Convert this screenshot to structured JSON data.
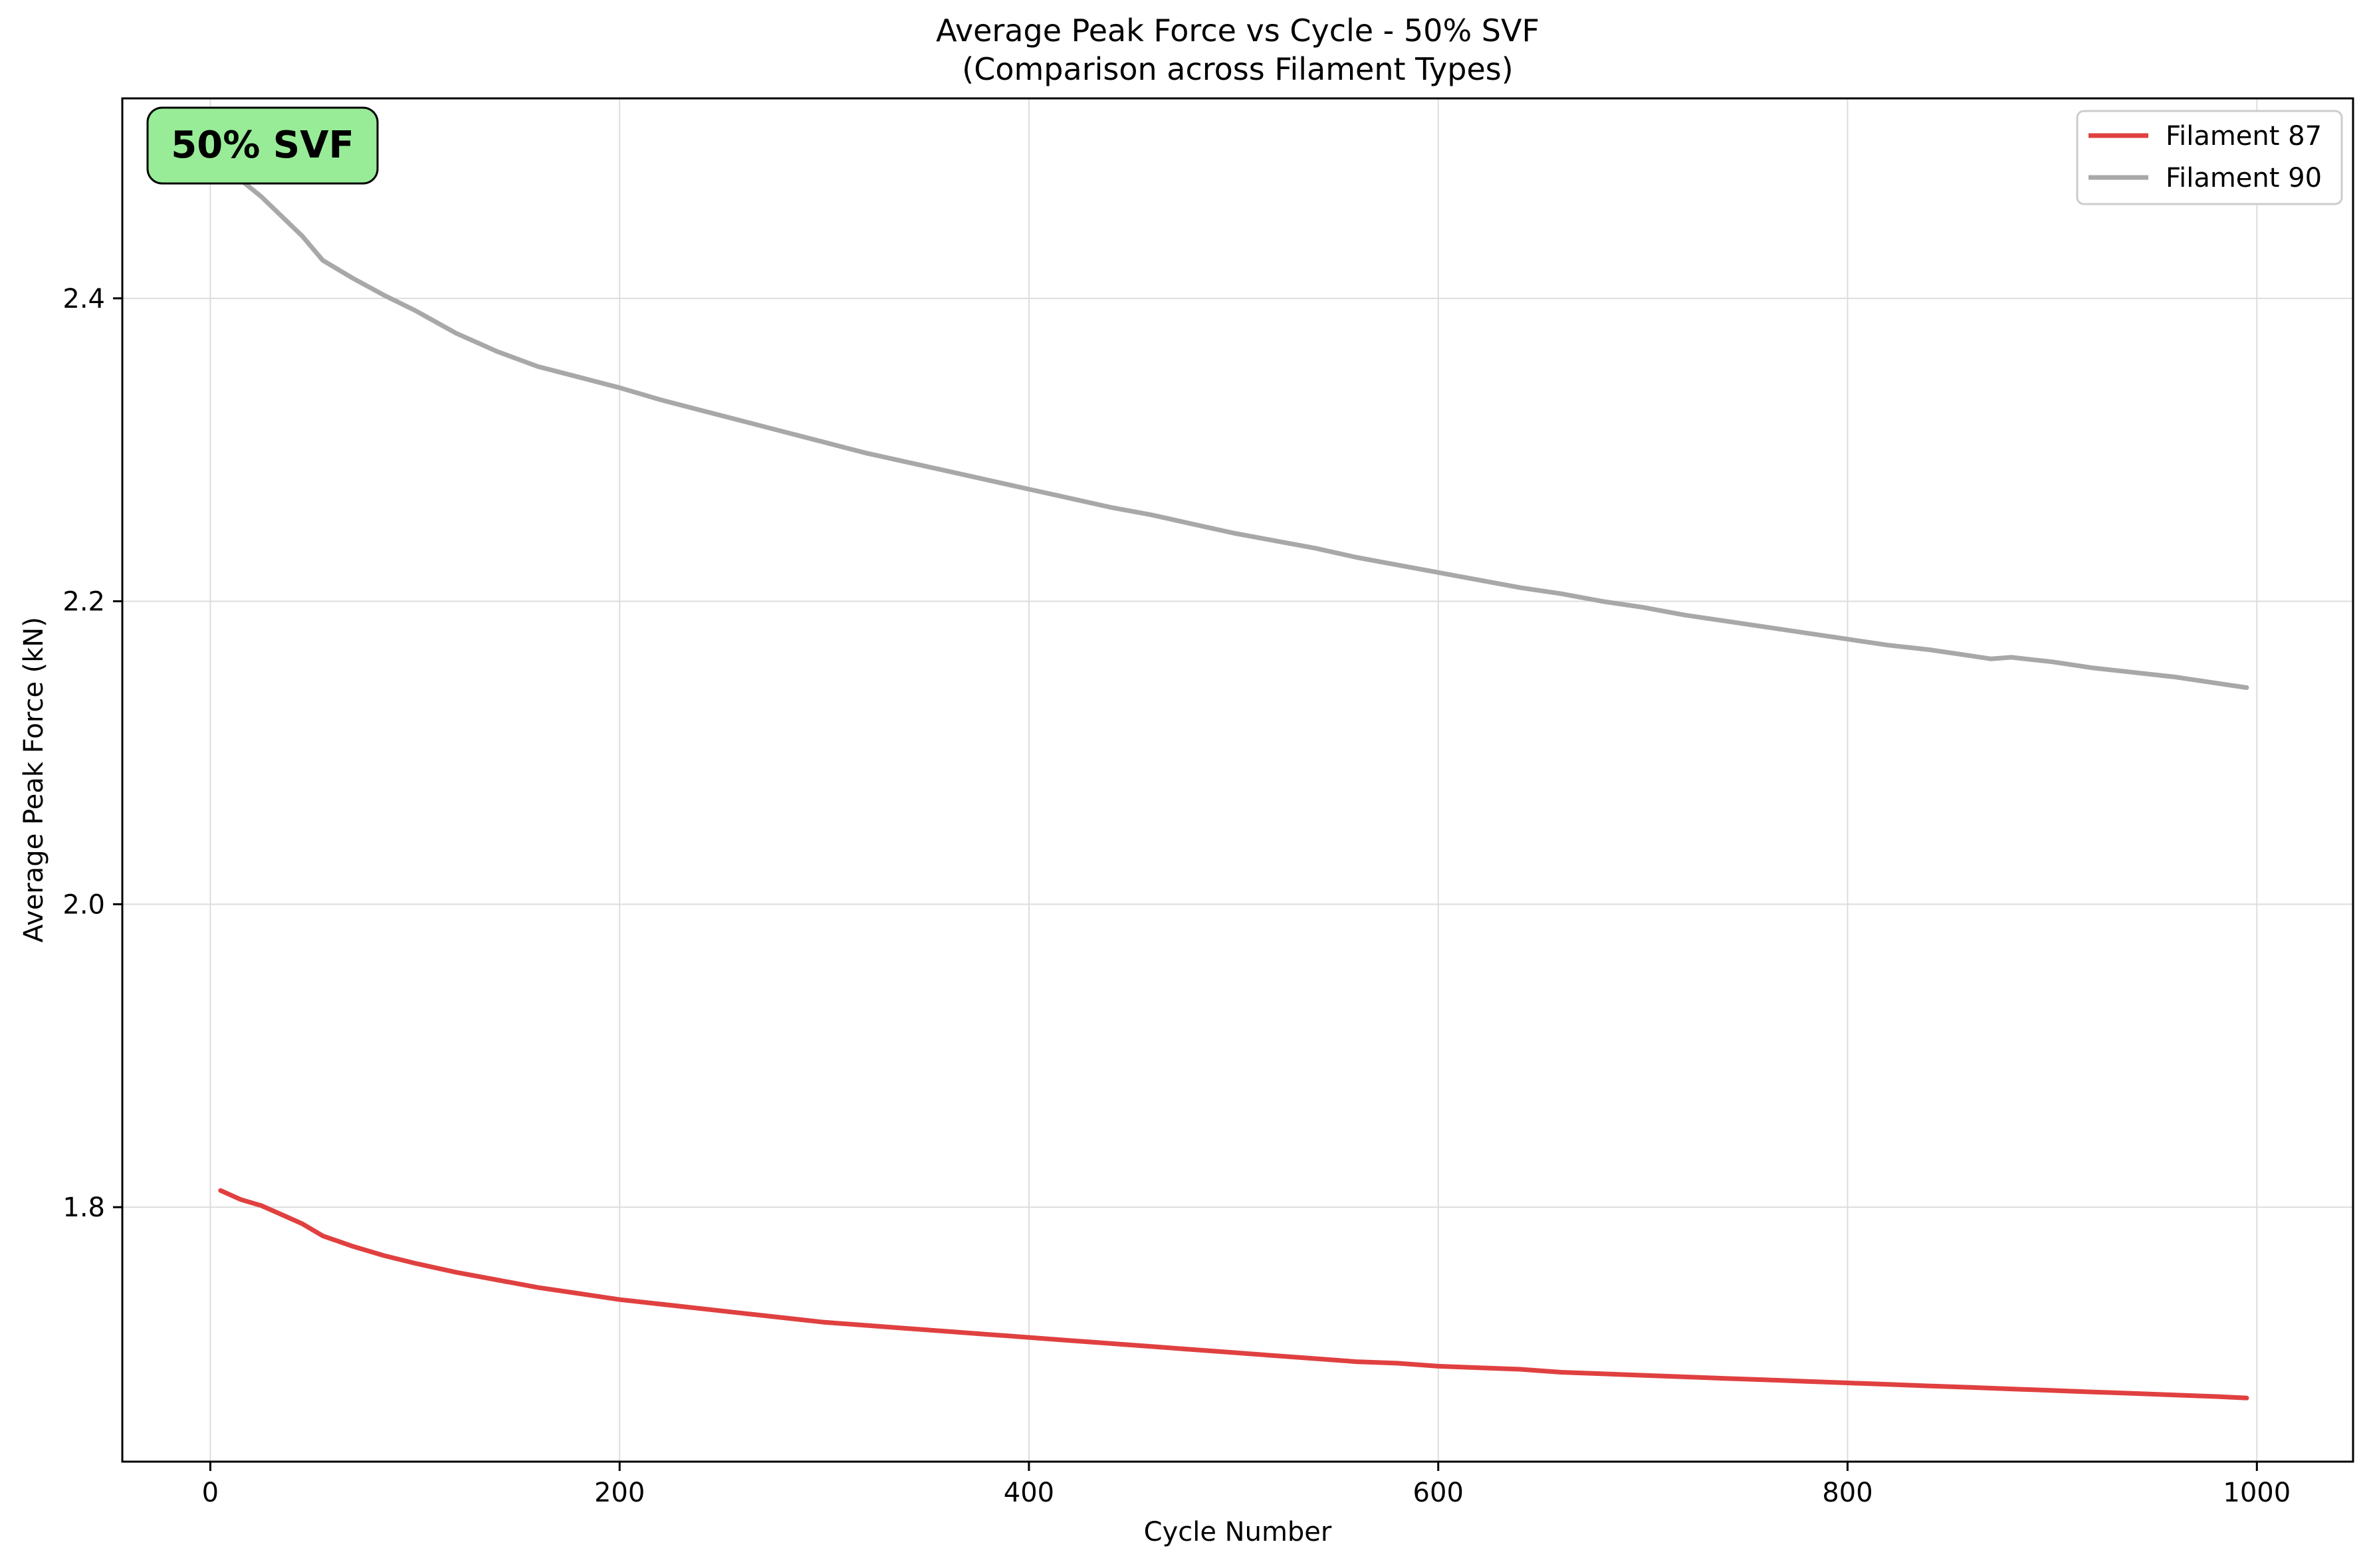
{
  "chart_data": {
    "type": "line",
    "title_line1": "Average Peak Force vs Cycle - 50% SVF",
    "title_line2": "(Comparison across Filament Types)",
    "xlabel": "Cycle Number",
    "ylabel": "Average Peak Force (kN)",
    "annotation": "50% SVF",
    "xlim": [
      -43,
      1047
    ],
    "ylim": [
      1.632,
      2.532
    ],
    "xticks": [
      0,
      200,
      400,
      600,
      800,
      1000
    ],
    "yticks": [
      1.8,
      2.0,
      2.2,
      2.4
    ],
    "xtick_labels": [
      "0",
      "200",
      "400",
      "600",
      "800",
      "1000"
    ],
    "ytick_labels": [
      "1.8",
      "2.0",
      "2.2",
      "2.4"
    ],
    "grid": true,
    "legend_position": "top-right",
    "series": [
      {
        "name": "Filament 87",
        "color": "#e04040",
        "x": [
          5,
          15,
          25,
          35,
          45,
          55,
          70,
          85,
          100,
          120,
          140,
          160,
          180,
          200,
          220,
          240,
          260,
          280,
          300,
          320,
          340,
          360,
          380,
          400,
          420,
          440,
          460,
          480,
          500,
          520,
          540,
          560,
          580,
          600,
          620,
          640,
          660,
          680,
          700,
          720,
          740,
          760,
          780,
          800,
          820,
          840,
          860,
          880,
          900,
          920,
          940,
          960,
          980,
          995
        ],
        "values": [
          1.811,
          1.805,
          1.801,
          1.795,
          1.789,
          1.781,
          1.774,
          1.768,
          1.763,
          1.757,
          1.752,
          1.747,
          1.743,
          1.739,
          1.736,
          1.733,
          1.73,
          1.727,
          1.724,
          1.722,
          1.72,
          1.718,
          1.716,
          1.714,
          1.712,
          1.71,
          1.708,
          1.706,
          1.704,
          1.702,
          1.7,
          1.698,
          1.697,
          1.695,
          1.694,
          1.693,
          1.691,
          1.69,
          1.689,
          1.688,
          1.687,
          1.686,
          1.685,
          1.684,
          1.683,
          1.682,
          1.681,
          1.68,
          1.679,
          1.678,
          1.677,
          1.676,
          1.675,
          1.674
        ]
      },
      {
        "name": "Filament 90",
        "color": "#a8a8a8",
        "x": [
          5,
          15,
          25,
          35,
          45,
          55,
          70,
          85,
          100,
          120,
          140,
          160,
          180,
          200,
          220,
          240,
          260,
          280,
          300,
          320,
          340,
          360,
          380,
          400,
          420,
          440,
          460,
          480,
          500,
          520,
          540,
          560,
          580,
          600,
          620,
          640,
          660,
          680,
          700,
          720,
          740,
          760,
          780,
          800,
          820,
          840,
          860,
          870,
          880,
          900,
          920,
          940,
          960,
          980,
          995
        ],
        "values": [
          2.49,
          2.478,
          2.467,
          2.454,
          2.441,
          2.425,
          2.413,
          2.402,
          2.392,
          2.377,
          2.365,
          2.355,
          2.348,
          2.341,
          2.333,
          2.326,
          2.319,
          2.312,
          2.305,
          2.298,
          2.292,
          2.286,
          2.28,
          2.274,
          2.268,
          2.262,
          2.257,
          2.251,
          2.245,
          2.24,
          2.235,
          2.229,
          2.224,
          2.219,
          2.214,
          2.209,
          2.205,
          2.2,
          2.196,
          2.191,
          2.187,
          2.183,
          2.179,
          2.175,
          2.171,
          2.168,
          2.164,
          2.162,
          2.163,
          2.16,
          2.156,
          2.153,
          2.15,
          2.146,
          2.143
        ]
      }
    ]
  }
}
